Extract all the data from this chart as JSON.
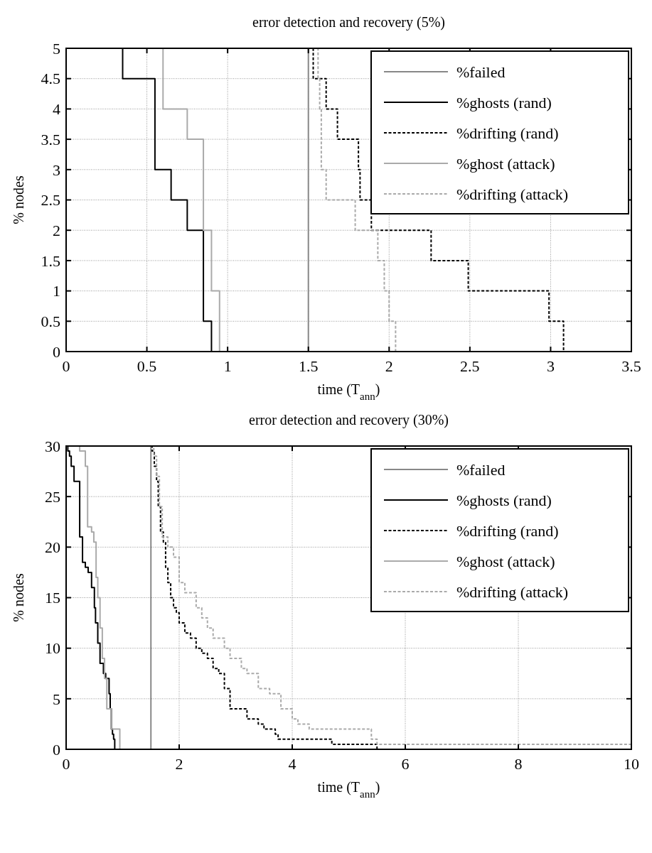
{
  "chart_data": [
    {
      "type": "step",
      "title": "error detection and recovery (5%)",
      "xlabel": "time (T$_{ann}$)",
      "ylabel": "% nodes",
      "xlim": [
        0,
        3.5
      ],
      "xticks": [
        0,
        0.5,
        1,
        1.5,
        2,
        2.5,
        3,
        3.5
      ],
      "ylim": [
        0,
        5
      ],
      "yticks": [
        0,
        0.5,
        1,
        1.5,
        2,
        2.5,
        3,
        3.5,
        4,
        4.5,
        5
      ],
      "grid": true,
      "legend": "top right",
      "series": [
        {
          "name": "%failed",
          "color": "#888888",
          "line_style": "solid",
          "x": [
            0,
            1.5
          ],
          "values": [
            5,
            0
          ]
        },
        {
          "name": "%ghosts (rand)",
          "color": "#000000",
          "line_style": "solid",
          "x": [
            0,
            0.35,
            0.55,
            0.65,
            0.75,
            0.85,
            0.9
          ],
          "values": [
            5,
            4.5,
            3,
            2.5,
            2,
            0.5,
            0
          ]
        },
        {
          "name": "%drifting (rand)",
          "color": "#000000",
          "line_style": "dashed",
          "x": [
            1.5,
            1.53,
            1.61,
            1.68,
            1.81,
            1.82,
            1.89,
            2.26,
            2.49,
            2.99,
            3.08
          ],
          "values": [
            5,
            4.5,
            4,
            3.5,
            3,
            2.5,
            2,
            1.5,
            1,
            0.5,
            0
          ]
        },
        {
          "name": "%ghost (attack)",
          "color": "#aaaaaa",
          "line_style": "solid",
          "x": [
            0,
            0.6,
            0.75,
            0.85,
            0.9,
            0.95
          ],
          "values": [
            5,
            4,
            3.5,
            2,
            1,
            0
          ]
        },
        {
          "name": "%drifting (attack)",
          "color": "#aaaaaa",
          "line_style": "dashed",
          "x": [
            1.5,
            1.56,
            1.57,
            1.58,
            1.61,
            1.79,
            1.93,
            1.97,
            2.0,
            2.04
          ],
          "values": [
            5,
            4.5,
            4,
            3,
            2.5,
            2,
            1.5,
            1,
            0.5,
            0
          ]
        }
      ]
    },
    {
      "type": "step",
      "title": "error detection and recovery (30%)",
      "xlabel": "time (T$_{ann}$)",
      "ylabel": "% nodes",
      "xlim": [
        0,
        10
      ],
      "xticks": [
        0,
        2,
        4,
        6,
        8,
        10
      ],
      "ylim": [
        0,
        30
      ],
      "yticks": [
        0,
        5,
        10,
        15,
        20,
        25,
        30
      ],
      "grid": true,
      "legend": "top right",
      "series": [
        {
          "name": "%failed",
          "color": "#888888",
          "line_style": "solid",
          "x": [
            0,
            1.5
          ],
          "values": [
            30,
            0
          ]
        },
        {
          "name": "%ghosts (rand)",
          "color": "#000000",
          "line_style": "solid",
          "x": [
            0,
            0.03,
            0.06,
            0.09,
            0.14,
            0.24,
            0.29,
            0.34,
            0.39,
            0.45,
            0.5,
            0.52,
            0.56,
            0.6,
            0.66,
            0.7,
            0.76,
            0.78,
            0.8,
            0.82,
            0.84,
            0.86
          ],
          "values": [
            30,
            29.5,
            29,
            28,
            26.5,
            21,
            18.5,
            18,
            17.5,
            16,
            14,
            12.5,
            10.5,
            8.5,
            7.5,
            7,
            5.5,
            4,
            2,
            1.5,
            1,
            0
          ]
        },
        {
          "name": "%drifting (rand)",
          "color": "#000000",
          "line_style": "dashed",
          "x": [
            1.5,
            1.52,
            1.56,
            1.6,
            1.63,
            1.67,
            1.72,
            1.76,
            1.8,
            1.85,
            1.9,
            1.95,
            2.0,
            2.1,
            2.2,
            2.3,
            2.4,
            2.5,
            2.6,
            2.7,
            2.8,
            2.9,
            3.2,
            3.4,
            3.5,
            3.7,
            3.75,
            4.7,
            5.5
          ],
          "values": [
            30,
            29.5,
            28,
            26.5,
            24,
            21.5,
            20.5,
            18,
            16.5,
            15,
            14,
            13.5,
            12.5,
            11.5,
            11,
            10,
            9.5,
            9,
            8,
            7.5,
            6,
            4,
            3,
            2.5,
            2,
            1.5,
            1,
            0.5,
            0
          ]
        },
        {
          "name": "%ghost (attack)",
          "color": "#aaaaaa",
          "line_style": "solid",
          "x": [
            0,
            0.24,
            0.34,
            0.38,
            0.45,
            0.49,
            0.53,
            0.56,
            0.6,
            0.64,
            0.68,
            0.72,
            0.8,
            0.95
          ],
          "values": [
            30,
            29.5,
            28,
            22,
            21.5,
            20.5,
            17,
            15,
            12,
            9,
            7,
            4,
            2,
            0
          ]
        },
        {
          "name": "%drifting (attack)",
          "color": "#aaaaaa",
          "line_style": "dashed",
          "x": [
            1.5,
            1.55,
            1.6,
            1.65,
            1.7,
            1.8,
            1.9,
            2.0,
            2.1,
            2.3,
            2.4,
            2.5,
            2.6,
            2.8,
            2.9,
            3.1,
            3.2,
            3.4,
            3.6,
            3.8,
            4.0,
            4.1,
            4.3,
            5.4,
            5.5,
            10
          ],
          "values": [
            30,
            29,
            27,
            24,
            21,
            20,
            19,
            16.5,
            15.5,
            14,
            13,
            12,
            11,
            10,
            9,
            8,
            7.5,
            6,
            5.5,
            4,
            3,
            2.5,
            2,
            1,
            0.5,
            0.5
          ]
        }
      ]
    }
  ]
}
